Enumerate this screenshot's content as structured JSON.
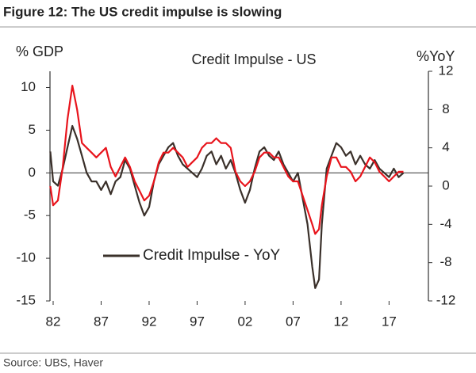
{
  "chart_data": {
    "type": "line",
    "title": "Figure 12: The US credit impulse is slowing",
    "subtitle": "Credit Impulse - US",
    "ylabel": "% GDP",
    "y2label": "%YoY",
    "source": "Source:  UBS, Haver",
    "x": [
      1981.7,
      1982.0,
      1982.5,
      1983.0,
      1983.5,
      1984.0,
      1984.5,
      1985.0,
      1985.5,
      1986.0,
      1986.5,
      1987.0,
      1987.5,
      1988.0,
      1988.5,
      1989.0,
      1989.5,
      1990.0,
      1990.5,
      1991.0,
      1991.5,
      1992.0,
      1992.5,
      1993.0,
      1993.5,
      1994.0,
      1994.5,
      1995.0,
      1995.5,
      1996.0,
      1996.5,
      1997.0,
      1997.5,
      1998.0,
      1998.5,
      1999.0,
      1999.5,
      2000.0,
      2000.5,
      2001.0,
      2001.5,
      2002.0,
      2002.5,
      2003.0,
      2003.5,
      2004.0,
      2004.5,
      2005.0,
      2005.5,
      2006.0,
      2006.5,
      2007.0,
      2007.5,
      2008.0,
      2008.5,
      2009.0,
      2009.3,
      2009.7,
      2010.0,
      2010.5,
      2011.0,
      2011.5,
      2012.0,
      2012.5,
      2013.0,
      2013.5,
      2014.0,
      2014.5,
      2015.0,
      2015.5,
      2016.0,
      2016.5,
      2017.0,
      2017.5,
      2018.0,
      2018.5
    ],
    "series": [
      {
        "name": "Credit Impulse - YoY",
        "color": "#3a302a",
        "axis": "y",
        "values": [
          2.5,
          -1,
          -1.5,
          0.5,
          3,
          5.5,
          4,
          2,
          0,
          -1,
          -1,
          -2,
          -1,
          -2.5,
          -1,
          -0.5,
          1.5,
          0.5,
          -1.5,
          -3.5,
          -5,
          -4,
          -1,
          1,
          2,
          3,
          3.5,
          2,
          1,
          0.5,
          0,
          -0.5,
          0.5,
          2,
          2.5,
          1,
          2,
          0.5,
          1.5,
          0,
          -2,
          -3.5,
          -2,
          0.5,
          2.5,
          3,
          2,
          1.5,
          2.5,
          1,
          0,
          -1,
          0,
          -3,
          -6,
          -11,
          -13.5,
          -12.5,
          -6,
          0.5,
          2,
          3.5,
          3,
          2,
          2.5,
          1,
          2,
          1,
          0.5,
          1.5,
          0.5,
          0,
          -0.5,
          0.5,
          -0.5,
          0
        ]
      },
      {
        "color": "#e8141c",
        "axis": "y2",
        "values": [
          0,
          -2,
          -1.5,
          2,
          7,
          10.5,
          8,
          4.5,
          4,
          3.5,
          3,
          3.5,
          4,
          2,
          1,
          2,
          3,
          2,
          0.5,
          -0.5,
          -1.5,
          -1,
          0.5,
          2.5,
          3.5,
          3.5,
          4,
          3.5,
          3,
          2,
          2.5,
          3,
          4,
          4.5,
          4.5,
          5,
          4.5,
          4.5,
          4,
          1.5,
          0.5,
          0,
          0.5,
          1.5,
          3,
          3.5,
          3.5,
          3,
          3,
          2,
          1,
          0.5,
          0.5,
          -1,
          -2.5,
          -4,
          -5,
          -4.5,
          -2,
          1,
          3,
          3,
          2,
          2,
          1.5,
          0.5,
          1,
          2,
          3,
          2.5,
          1.5,
          1,
          0.5,
          1,
          1.5,
          1.5
        ]
      }
    ],
    "xlim": [
      1981.67,
      2021.1
    ],
    "xticks": [
      {
        "value": 1982,
        "label": "82"
      },
      {
        "value": 1987,
        "label": "87"
      },
      {
        "value": 1992,
        "label": "92"
      },
      {
        "value": 1997,
        "label": "97"
      },
      {
        "value": 2002,
        "label": "02"
      },
      {
        "value": 2007,
        "label": "07"
      },
      {
        "value": 2012,
        "label": "12"
      },
      {
        "value": 2017,
        "label": "17"
      }
    ],
    "ylim": [
      -15,
      11.9
    ],
    "yticks": [
      10,
      5,
      0,
      -5,
      -10,
      -15
    ],
    "y2lim": [
      -12,
      12
    ],
    "y2ticks": [
      12,
      8,
      4,
      0,
      -4,
      -8,
      -12
    ]
  }
}
